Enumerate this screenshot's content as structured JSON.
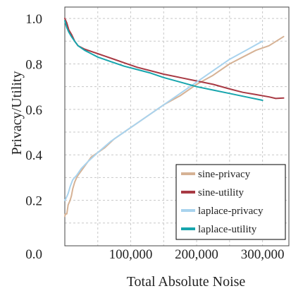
{
  "chart_data": {
    "type": "line",
    "xlabel": "Total Absolute Noise",
    "ylabel": "Privacy/Utility",
    "xlim": [
      0,
      340000
    ],
    "ylim": [
      0,
      1.05
    ],
    "grid": true,
    "legend_position": "bottom-right",
    "x_ticks": [
      {
        "value": 100000,
        "label": "100,000"
      },
      {
        "value": 200000,
        "label": "200,000"
      },
      {
        "value": 300000,
        "label": "300,000"
      }
    ],
    "y_ticks": [
      {
        "value": 0.0,
        "label": "0.0"
      },
      {
        "value": 0.2,
        "label": "0.2"
      },
      {
        "value": 0.4,
        "label": "0.4"
      },
      {
        "value": 0.6,
        "label": "0.6"
      },
      {
        "value": 0.8,
        "label": "0.8"
      },
      {
        "value": 1.0,
        "label": "1.0"
      }
    ],
    "series": [
      {
        "name": "sine-privacy",
        "color": "#d6b295",
        "x": [
          0,
          1000,
          3000,
          5000,
          8000,
          10000,
          12000,
          15000,
          18000,
          20000,
          25000,
          30000,
          40000,
          50000,
          60000,
          75000,
          90000,
          110000,
          130000,
          150000,
          175000,
          200000,
          225000,
          250000,
          270000,
          290000,
          310000,
          332000
        ],
        "y": [
          0.13,
          0.14,
          0.14,
          0.18,
          0.2,
          0.22,
          0.25,
          0.28,
          0.3,
          0.31,
          0.33,
          0.35,
          0.39,
          0.41,
          0.43,
          0.47,
          0.5,
          0.54,
          0.58,
          0.62,
          0.66,
          0.71,
          0.75,
          0.8,
          0.83,
          0.86,
          0.88,
          0.92
        ]
      },
      {
        "name": "sine-utility",
        "color": "#a83a44",
        "x": [
          0,
          3000,
          6000,
          10000,
          15000,
          20000,
          30000,
          40000,
          50000,
          60000,
          75000,
          90000,
          110000,
          130000,
          150000,
          175000,
          200000,
          225000,
          250000,
          270000,
          290000,
          310000,
          320000,
          332000
        ],
        "y": [
          1.0,
          0.98,
          0.95,
          0.93,
          0.9,
          0.88,
          0.865,
          0.855,
          0.845,
          0.835,
          0.82,
          0.805,
          0.785,
          0.77,
          0.755,
          0.74,
          0.725,
          0.71,
          0.69,
          0.675,
          0.665,
          0.655,
          0.648,
          0.65
        ]
      },
      {
        "name": "laplace-privacy",
        "color": "#a9d3ee",
        "x": [
          0,
          2000,
          5000,
          8000,
          12000,
          18000,
          25000,
          35000,
          50000,
          70000,
          90000,
          110000,
          130000,
          150000,
          175000,
          200000,
          225000,
          250000,
          275000,
          300000
        ],
        "y": [
          0.2,
          0.21,
          0.23,
          0.26,
          0.29,
          0.31,
          0.34,
          0.37,
          0.41,
          0.46,
          0.5,
          0.54,
          0.58,
          0.62,
          0.67,
          0.72,
          0.77,
          0.82,
          0.86,
          0.9
        ]
      },
      {
        "name": "laplace-utility",
        "color": "#17a5ad",
        "x": [
          0,
          3000,
          6000,
          10000,
          15000,
          20000,
          30000,
          40000,
          50000,
          70000,
          90000,
          110000,
          130000,
          150000,
          175000,
          200000,
          225000,
          250000,
          275000,
          300000
        ],
        "y": [
          0.99,
          0.96,
          0.94,
          0.92,
          0.9,
          0.88,
          0.86,
          0.845,
          0.83,
          0.81,
          0.79,
          0.775,
          0.76,
          0.74,
          0.72,
          0.7,
          0.685,
          0.67,
          0.655,
          0.64
        ]
      }
    ]
  }
}
